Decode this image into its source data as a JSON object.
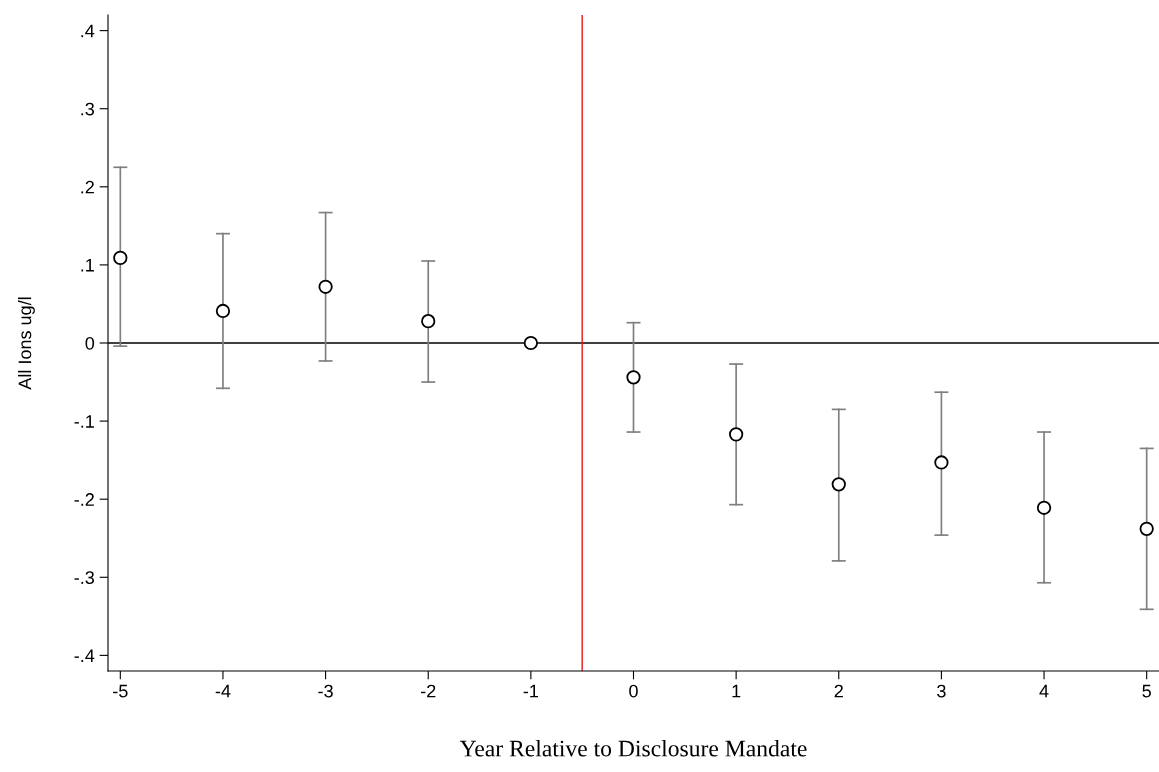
{
  "chart_data": {
    "type": "scatter",
    "xlabel": "Year Relative to Disclosure Mandate",
    "ylabel": "All Ions ug/l",
    "x": [
      -5,
      -4,
      -3,
      -2,
      -1,
      0,
      1,
      2,
      3,
      4,
      5
    ],
    "values": [
      0.109,
      0.041,
      0.072,
      0.028,
      0,
      -0.044,
      -0.117,
      -0.181,
      -0.153,
      -0.211,
      -0.238
    ],
    "errors": [
      [
        -0.004,
        0.225
      ],
      [
        -0.058,
        0.14
      ],
      [
        -0.023,
        0.167
      ],
      [
        -0.05,
        0.105
      ],
      null,
      [
        -0.114,
        0.026
      ],
      [
        -0.207,
        -0.027
      ],
      [
        -0.279,
        -0.085
      ],
      [
        -0.246,
        -0.063
      ],
      [
        -0.307,
        -0.114
      ],
      [
        -0.341,
        -0.135
      ]
    ],
    "color": "#000000",
    "marker": "circle",
    "xlim": [
      -5.12,
      5.12
    ],
    "xticks": [
      -5,
      -4,
      -3,
      -2,
      -1,
      0,
      1,
      2,
      3,
      4,
      5
    ],
    "ylim": [
      -0.42,
      0.42
    ],
    "yticks": [
      {
        "value": -0.4,
        "label": "-.4"
      },
      {
        "value": -0.3,
        "label": "-.3"
      },
      {
        "value": -0.2,
        "label": "-.2"
      },
      {
        "value": -0.1,
        "label": "-.1"
      },
      0,
      {
        "value": 0.1,
        "label": ".1"
      },
      {
        "value": 0.2,
        "label": ".2"
      },
      {
        "value": 0.3,
        "label": ".3"
      },
      {
        "value": 0.4,
        "label": ".4"
      }
    ],
    "ref_lines": [
      {
        "axis": "y",
        "value": 0,
        "color": "#000000"
      },
      {
        "axis": "x",
        "value": -0.5,
        "color": "#e8141c"
      }
    ],
    "grid": false
  }
}
